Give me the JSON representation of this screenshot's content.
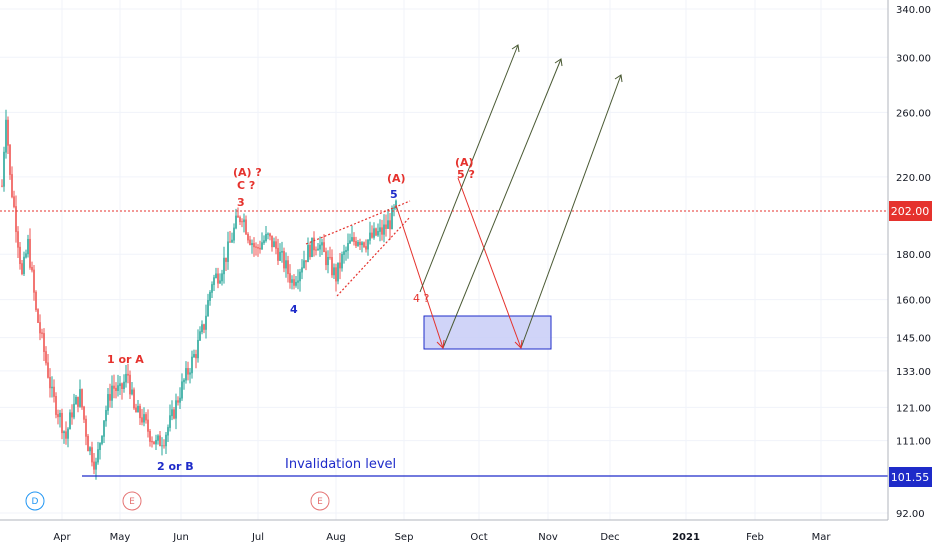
{
  "chart_data": {
    "type": "candlestick",
    "price_axis": {
      "scale": "log",
      "ticks": [
        "340.00",
        "300.00",
        "260.00",
        "220.00",
        "180.00",
        "160.00",
        "145.00",
        "133.00",
        "121.00",
        "111.00",
        "92.00"
      ],
      "current_price": "202.00",
      "invalidation_price": "101.55"
    },
    "time_axis": {
      "ticks": [
        "Apr",
        "May",
        "Jun",
        "Jul",
        "Aug",
        "Sep",
        "Oct",
        "Nov",
        "Dec",
        "2021",
        "Feb",
        "Mar"
      ]
    },
    "wave_labels": [
      {
        "text": "(A) ?",
        "color": "#1e2bc9"
      },
      {
        "text": "C ?",
        "color": "#e5322d"
      },
      {
        "text": "3",
        "color": "#e5322d"
      },
      {
        "text": "4",
        "color": "#e5322d"
      },
      {
        "text": "(A)",
        "color": "#1e2bc9"
      },
      {
        "text": "5",
        "color": "#e5322d"
      },
      {
        "text": "(A)",
        "color": "#1e2bc9"
      },
      {
        "text": "5 ?",
        "color": "#e5322d"
      },
      {
        "text": "4 ?",
        "color": "#e5322d"
      },
      {
        "text": "1 or A",
        "color": "#e5322d"
      },
      {
        "text": "2 or B",
        "color": "#e5322d"
      }
    ],
    "annotations": {
      "invalidation_label": "Invalidation level"
    },
    "event_markers": [
      {
        "text": "D",
        "color": "#2196f3"
      },
      {
        "text": "E",
        "color": "#e57373"
      },
      {
        "text": "E",
        "color": "#e57373"
      }
    ],
    "colors": {
      "up": "#26a69a",
      "down": "#ef5350",
      "projection_down": "#e5322d",
      "projection_up": "#4a5a34",
      "invalidation_line": "#1e2bc9",
      "target_zone_fill": "#c8cdf7",
      "target_zone_border": "#1e2bc9",
      "price_badge": "#e5322d",
      "invalidation_badge": "#1e2bc9"
    },
    "grid": true
  }
}
